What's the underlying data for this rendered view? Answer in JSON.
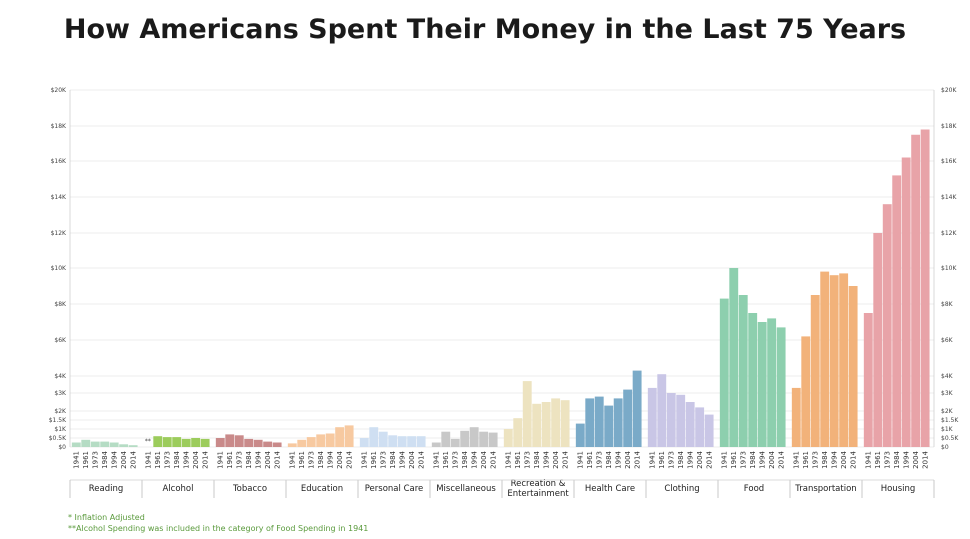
{
  "title": "How Americans Spent Their Money in the Last 75 Years",
  "notes": {
    "line1": "* Inflation Adjusted",
    "line2": "**Alcohol Spending was included in the category of Food Spending in 1941"
  },
  "chart_data": {
    "type": "bar",
    "title": "How Americans Spent Their Money in the Last 75 Years",
    "years": [
      "1941",
      "1961",
      "1973",
      "1984",
      "1994",
      "2004",
      "2014"
    ],
    "y_ticks": [
      {
        "value": 0,
        "label": "$0"
      },
      {
        "value": 500,
        "label": "$0.5K"
      },
      {
        "value": 1000,
        "label": "$1K"
      },
      {
        "value": 1500,
        "label": "$1.5K"
      },
      {
        "value": 2000,
        "label": "$2K"
      },
      {
        "value": 3000,
        "label": "$3K"
      },
      {
        "value": 4000,
        "label": "$4K"
      },
      {
        "value": 6000,
        "label": "$6K"
      },
      {
        "value": 8000,
        "label": "$8K"
      },
      {
        "value": 10000,
        "label": "$10K"
      },
      {
        "value": 12000,
        "label": "$12K"
      },
      {
        "value": 14000,
        "label": "$14K"
      },
      {
        "value": 16000,
        "label": "$16K"
      },
      {
        "value": 18000,
        "label": "$18K"
      },
      {
        "value": 20000,
        "label": "$20K"
      }
    ],
    "ylim": [
      0,
      20000
    ],
    "grid": true,
    "categories": [
      {
        "name": "Reading",
        "color": "#b5dcc4",
        "values": [
          250,
          400,
          300,
          300,
          250,
          150,
          100
        ]
      },
      {
        "name": "Alcohol",
        "color": "#9ccc5c",
        "values": [
          null,
          600,
          550,
          550,
          450,
          500,
          450
        ],
        "marker": "**"
      },
      {
        "name": "Tobacco",
        "color": "#c98a8a",
        "values": [
          500,
          700,
          650,
          450,
          400,
          300,
          250
        ]
      },
      {
        "name": "Education",
        "color": "#f7c9a0",
        "values": [
          200,
          400,
          550,
          700,
          750,
          1100,
          1200
        ]
      },
      {
        "name": "Personal Care",
        "color": "#cfdff2",
        "values": [
          500,
          1100,
          850,
          650,
          600,
          600,
          600
        ]
      },
      {
        "name": "Miscellaneous",
        "color": "#c8c8c8",
        "values": [
          250,
          850,
          450,
          900,
          1100,
          850,
          800
        ]
      },
      {
        "name": "Recreation & Entertainment",
        "color": "#ede3c0",
        "values": [
          1000,
          1600,
          3700,
          2400,
          2500,
          2700,
          2600
        ]
      },
      {
        "name": "Health Care",
        "color": "#7aaac8",
        "values": [
          1300,
          2700,
          2800,
          2300,
          2700,
          3200,
          4300
        ]
      },
      {
        "name": "Clothing",
        "color": "#c9c6e6",
        "values": [
          3300,
          4100,
          3000,
          2900,
          2500,
          2200,
          1800
        ]
      },
      {
        "name": "Food",
        "color": "#8dcfae",
        "values": [
          8300,
          10000,
          8500,
          7500,
          7000,
          7200,
          6700
        ]
      },
      {
        "name": "Transportation",
        "color": "#f2b27a",
        "values": [
          3300,
          6200,
          8500,
          9800,
          9600,
          9700,
          9000
        ]
      },
      {
        "name": "Housing",
        "color": "#e8a3a8",
        "values": [
          7500,
          12000,
          13600,
          15200,
          16200,
          17500,
          17800
        ]
      }
    ]
  }
}
